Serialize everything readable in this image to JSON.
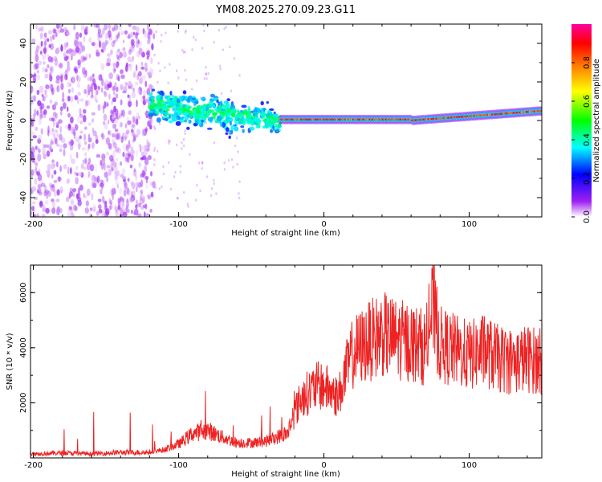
{
  "title": "YM08.2025.270.09.23.G11",
  "chart_data": [
    {
      "type": "heatmap",
      "title": "YM08.2025.270.09.23.G11",
      "xlabel": "Height of straight line (km)",
      "ylabel": "Frequency (Hz)",
      "xlim": [
        -202,
        150
      ],
      "ylim": [
        -50,
        50
      ],
      "xticks": [
        -200,
        -100,
        0,
        100
      ],
      "xtick_labels": [
        "-200",
        "-100",
        "0",
        "100"
      ],
      "yticks": [
        -40,
        -20,
        0,
        20,
        40
      ],
      "ytick_labels": [
        "-40",
        "-20",
        "0",
        "20",
        "40"
      ],
      "colorbar": {
        "label": "Normalized spectral amplitude",
        "range": [
          0,
          1
        ],
        "ticks": [
          0.0,
          0.2,
          0.4,
          0.6,
          0.8
        ],
        "tick_labels": [
          "0.0",
          "0.2",
          "0.4",
          "0.6",
          "0.8"
        ],
        "colors": [
          "#ffffff",
          "#a020f0",
          "#0000ff",
          "#00ffff",
          "#00ff00",
          "#ffff00",
          "#ff8000",
          "#ff0000",
          "#ff00a0"
        ]
      },
      "regions": [
        {
          "name": "scattered noise",
          "x_range": [
            -202,
            -117
          ],
          "freq_range": [
            -50,
            50
          ],
          "amplitude": 0.1
        },
        {
          "name": "broad signal",
          "x_range": [
            -120,
            -30
          ],
          "freq_range": [
            -15,
            15
          ],
          "amplitude": 0.35
        },
        {
          "name": "narrow carrier",
          "x_range": [
            -30,
            150
          ],
          "freq_center": [
            0,
            5
          ],
          "amplitude": 0.85
        }
      ]
    },
    {
      "type": "line",
      "xlabel": "Height of straight line (km)",
      "ylabel": "SNR (10 * v/v)",
      "xlim": [
        -202,
        150
      ],
      "ylim": [
        0,
        7000
      ],
      "xticks": [
        -200,
        -100,
        0,
        100
      ],
      "xtick_labels": [
        "-200",
        "-100",
        "0",
        "100"
      ],
      "yticks": [
        2000,
        4000,
        6000
      ],
      "ytick_labels": [
        "2000",
        "4000",
        "6000"
      ],
      "color": "#ee2222",
      "series": [
        {
          "name": "SNR",
          "x": [
            -202,
            -180,
            -160,
            -140,
            -120,
            -110,
            -100,
            -90,
            -80,
            -70,
            -60,
            -50,
            -40,
            -30,
            -25,
            -20,
            -15,
            -10,
            -5,
            0,
            5,
            10,
            15,
            20,
            30,
            40,
            50,
            60,
            70,
            75,
            80,
            90,
            100,
            110,
            120,
            130,
            140,
            150
          ],
          "values": [
            150,
            180,
            150,
            200,
            200,
            300,
            500,
            900,
            1000,
            750,
            550,
            550,
            600,
            800,
            900,
            1700,
            2200,
            2400,
            2600,
            2600,
            2400,
            2200,
            3100,
            3800,
            4200,
            4500,
            4300,
            4200,
            4000,
            5500,
            4100,
            3900,
            3700,
            3900,
            3600,
            3500,
            3600,
            3500
          ]
        }
      ]
    }
  ]
}
